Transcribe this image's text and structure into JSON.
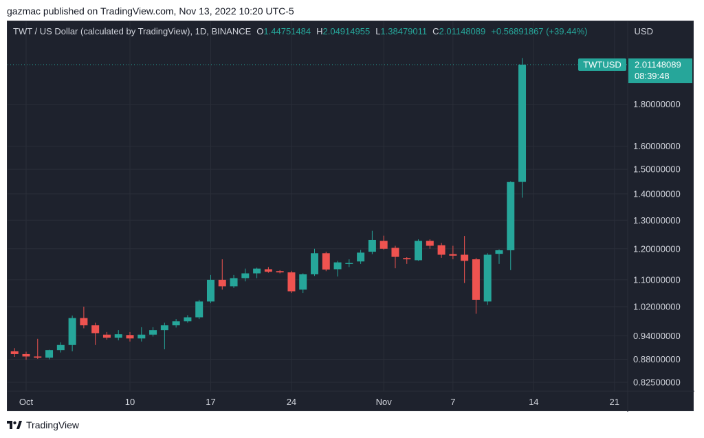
{
  "header": {
    "published_text": "gazmac published on TradingView.com, Nov 13, 2022 10:20 UTC-5"
  },
  "legend": {
    "symbol_text": "TWT / US Dollar (calculated by TradingView), 1D, BINANCE",
    "o_label": "O",
    "o_value": "1.44751484",
    "h_label": "H",
    "h_value": "2.04914955",
    "l_label": "L",
    "l_value": "1.38479011",
    "c_label": "C",
    "c_value": "2.01148089",
    "change_text": "+0.56891867 (+39.44%)"
  },
  "price_axis": {
    "currency": "USD"
  },
  "price_tag": {
    "symbol": "TWTUSD",
    "price": "2.01148089",
    "countdown": "08:39:48"
  },
  "footer": {
    "brand": "TradingView",
    "logo_icon": "tradingview-logo-icon"
  },
  "colors": {
    "background": "#1e222d",
    "grid": "#2a2e39",
    "up": "#26a69a",
    "down": "#ef5350",
    "text": "#d1d4dc"
  },
  "chart_data": {
    "type": "candlestick",
    "scale": "log",
    "ylim": [
      0.8,
      2.15
    ],
    "grid": true,
    "y_ticks": [
      "1.80000000",
      "1.60000000",
      "1.50000000",
      "1.40000000",
      "1.30000000",
      "1.20000000",
      "1.10000000",
      "1.02000000",
      "0.94000000",
      "0.88000000",
      "0.82500000"
    ],
    "x_ticks": [
      {
        "label": "Oct",
        "date": "2022-10-01"
      },
      {
        "label": "10",
        "date": "2022-10-10"
      },
      {
        "label": "17",
        "date": "2022-10-17"
      },
      {
        "label": "24",
        "date": "2022-10-24"
      },
      {
        "label": "Nov",
        "date": "2022-11-01"
      },
      {
        "label": "7",
        "date": "2022-11-07"
      },
      {
        "label": "14",
        "date": "2022-11-14"
      },
      {
        "label": "21",
        "date": "2022-11-21"
      }
    ],
    "candles": [
      {
        "date": "2022-09-30",
        "o": 0.9,
        "h": 0.908,
        "l": 0.886,
        "c": 0.893
      },
      {
        "date": "2022-10-01",
        "o": 0.893,
        "h": 0.899,
        "l": 0.879,
        "c": 0.887
      },
      {
        "date": "2022-10-02",
        "o": 0.887,
        "h": 0.932,
        "l": 0.881,
        "c": 0.884
      },
      {
        "date": "2022-10-03",
        "o": 0.884,
        "h": 0.904,
        "l": 0.88,
        "c": 0.903
      },
      {
        "date": "2022-10-04",
        "o": 0.903,
        "h": 0.923,
        "l": 0.897,
        "c": 0.916
      },
      {
        "date": "2022-10-05",
        "o": 0.916,
        "h": 0.995,
        "l": 0.9,
        "c": 0.988
      },
      {
        "date": "2022-10-06",
        "o": 0.988,
        "h": 1.02,
        "l": 0.96,
        "c": 0.968
      },
      {
        "date": "2022-10-07",
        "o": 0.968,
        "h": 0.975,
        "l": 0.916,
        "c": 0.947
      },
      {
        "date": "2022-10-08",
        "o": 0.943,
        "h": 0.95,
        "l": 0.93,
        "c": 0.935
      },
      {
        "date": "2022-10-09",
        "o": 0.935,
        "h": 0.955,
        "l": 0.928,
        "c": 0.944
      },
      {
        "date": "2022-10-10",
        "o": 0.942,
        "h": 0.95,
        "l": 0.925,
        "c": 0.933
      },
      {
        "date": "2022-10-11",
        "o": 0.933,
        "h": 0.963,
        "l": 0.925,
        "c": 0.943
      },
      {
        "date": "2022-10-12",
        "o": 0.943,
        "h": 0.963,
        "l": 0.938,
        "c": 0.955
      },
      {
        "date": "2022-10-13",
        "o": 0.955,
        "h": 0.975,
        "l": 0.905,
        "c": 0.968
      },
      {
        "date": "2022-10-14",
        "o": 0.968,
        "h": 0.985,
        "l": 0.962,
        "c": 0.979
      },
      {
        "date": "2022-10-15",
        "o": 0.979,
        "h": 0.996,
        "l": 0.975,
        "c": 0.99
      },
      {
        "date": "2022-10-16",
        "o": 0.99,
        "h": 1.04,
        "l": 0.985,
        "c": 1.035
      },
      {
        "date": "2022-10-17",
        "o": 1.035,
        "h": 1.115,
        "l": 1.03,
        "c": 1.1
      },
      {
        "date": "2022-10-18",
        "o": 1.1,
        "h": 1.165,
        "l": 1.07,
        "c": 1.08
      },
      {
        "date": "2022-10-19",
        "o": 1.08,
        "h": 1.115,
        "l": 1.075,
        "c": 1.105
      },
      {
        "date": "2022-10-20",
        "o": 1.105,
        "h": 1.135,
        "l": 1.095,
        "c": 1.12
      },
      {
        "date": "2022-10-21",
        "o": 1.12,
        "h": 1.138,
        "l": 1.105,
        "c": 1.135
      },
      {
        "date": "2022-10-22",
        "o": 1.133,
        "h": 1.14,
        "l": 1.122,
        "c": 1.125
      },
      {
        "date": "2022-10-23",
        "o": 1.127,
        "h": 1.13,
        "l": 1.12,
        "c": 1.123
      },
      {
        "date": "2022-10-24",
        "o": 1.123,
        "h": 1.128,
        "l": 1.06,
        "c": 1.065
      },
      {
        "date": "2022-10-25",
        "o": 1.07,
        "h": 1.12,
        "l": 1.06,
        "c": 1.117
      },
      {
        "date": "2022-10-26",
        "o": 1.117,
        "h": 1.2,
        "l": 1.112,
        "c": 1.185
      },
      {
        "date": "2022-10-27",
        "o": 1.185,
        "h": 1.19,
        "l": 1.127,
        "c": 1.132
      },
      {
        "date": "2022-10-28",
        "o": 1.133,
        "h": 1.16,
        "l": 1.11,
        "c": 1.155
      },
      {
        "date": "2022-10-29",
        "o": 1.151,
        "h": 1.165,
        "l": 1.14,
        "c": 1.153
      },
      {
        "date": "2022-10-30",
        "o": 1.158,
        "h": 1.196,
        "l": 1.15,
        "c": 1.187
      },
      {
        "date": "2022-10-31",
        "o": 1.19,
        "h": 1.262,
        "l": 1.182,
        "c": 1.23
      },
      {
        "date": "2022-11-01",
        "o": 1.227,
        "h": 1.245,
        "l": 1.197,
        "c": 1.2
      },
      {
        "date": "2022-11-02",
        "o": 1.203,
        "h": 1.21,
        "l": 1.136,
        "c": 1.173
      },
      {
        "date": "2022-11-03",
        "o": 1.169,
        "h": 1.172,
        "l": 1.15,
        "c": 1.165
      },
      {
        "date": "2022-11-04",
        "o": 1.162,
        "h": 1.232,
        "l": 1.16,
        "c": 1.227
      },
      {
        "date": "2022-11-05",
        "o": 1.227,
        "h": 1.232,
        "l": 1.2,
        "c": 1.21
      },
      {
        "date": "2022-11-06",
        "o": 1.212,
        "h": 1.22,
        "l": 1.17,
        "c": 1.18
      },
      {
        "date": "2022-11-07",
        "o": 1.182,
        "h": 1.21,
        "l": 1.165,
        "c": 1.177
      },
      {
        "date": "2022-11-08",
        "o": 1.18,
        "h": 1.244,
        "l": 1.09,
        "c": 1.16
      },
      {
        "date": "2022-11-09",
        "o": 1.165,
        "h": 1.17,
        "l": 1.0,
        "c": 1.04
      },
      {
        "date": "2022-11-10",
        "o": 1.035,
        "h": 1.185,
        "l": 1.025,
        "c": 1.18
      },
      {
        "date": "2022-11-11",
        "o": 1.183,
        "h": 1.198,
        "l": 1.15,
        "c": 1.195
      },
      {
        "date": "2022-11-12",
        "o": 1.195,
        "h": 1.45,
        "l": 1.13,
        "c": 1.447
      },
      {
        "date": "2022-11-13",
        "o": 1.44751484,
        "h": 2.04914955,
        "l": 1.38479011,
        "c": 2.01148089
      }
    ],
    "last_price": 2.01148089
  }
}
